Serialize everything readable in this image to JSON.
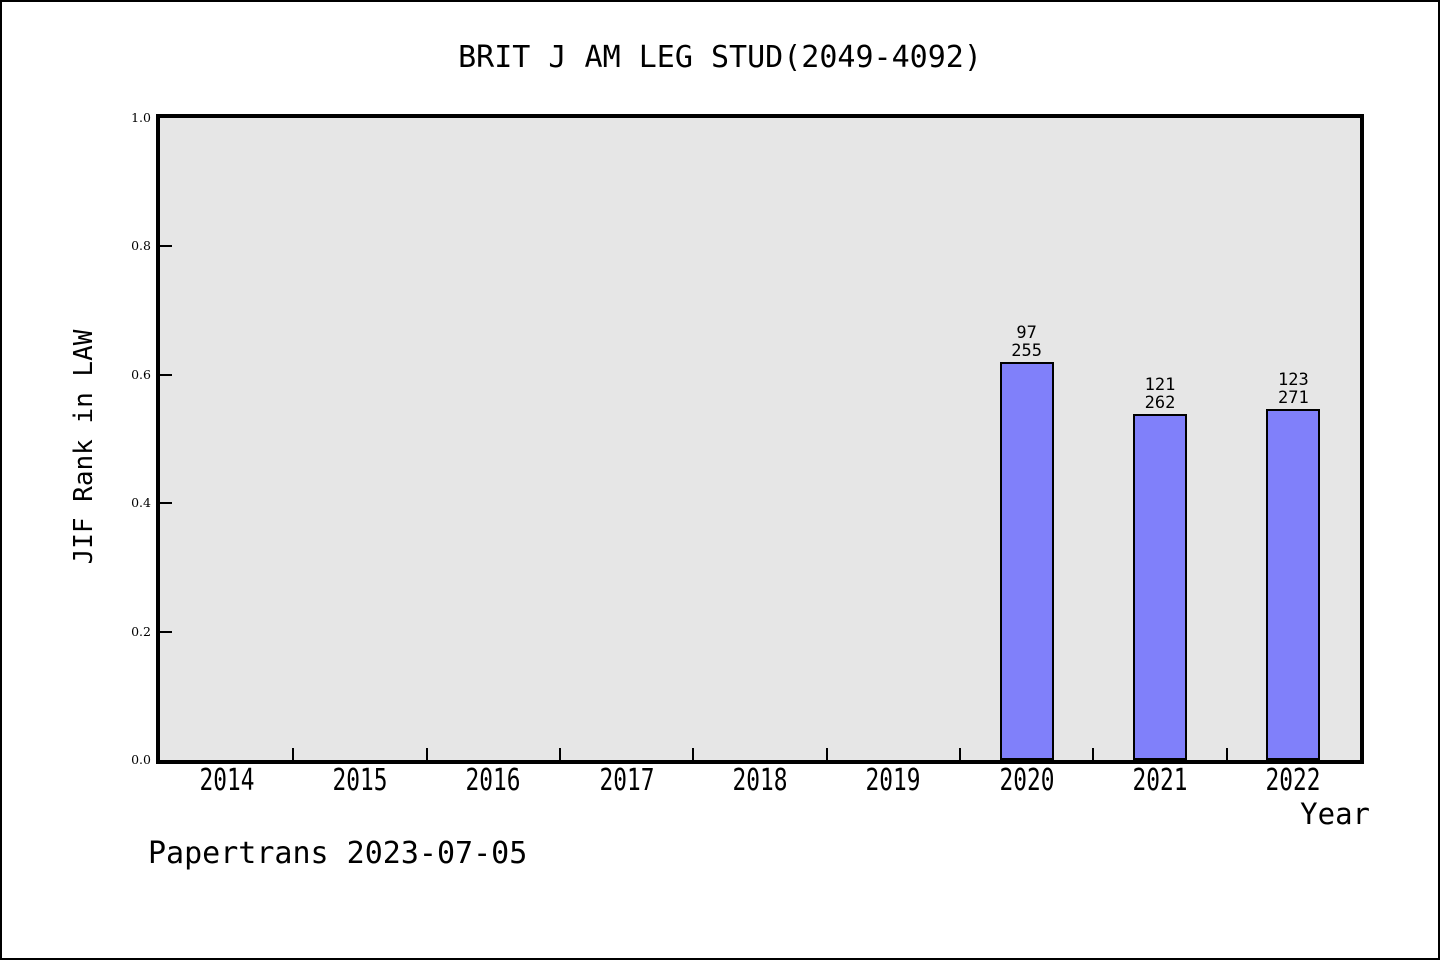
{
  "figure": {
    "background": "#ffffff",
    "border_color": "#000000",
    "footer": "Papertrans 2023-07-05"
  },
  "chart_data": {
    "type": "bar",
    "title": "BRIT J AM LEG STUD(2049-4092)",
    "xlabel": "Year",
    "ylabel": "JIF Rank in LAW",
    "categories": [
      "2014",
      "2015",
      "2016",
      "2017",
      "2018",
      "2019",
      "2020",
      "2021",
      "2022"
    ],
    "values": [
      null,
      null,
      null,
      null,
      null,
      null,
      0.6196,
      0.5382,
      0.5461
    ],
    "bars": [
      {
        "year": "2020",
        "rank": 97,
        "total": 255,
        "value": 0.6196,
        "label_lines": [
          "97",
          "255"
        ]
      },
      {
        "year": "2021",
        "rank": 121,
        "total": 262,
        "value": 0.5382,
        "label_lines": [
          "121",
          "262"
        ]
      },
      {
        "year": "2022",
        "rank": 123,
        "total": 271,
        "value": 0.5461,
        "label_lines": [
          "123",
          "271"
        ]
      }
    ],
    "ylim": [
      0.0,
      1.0
    ],
    "yticks": [
      "0.0",
      "0.2",
      "0.4",
      "0.6",
      "0.8",
      "1.0"
    ],
    "x_range": [
      2013.5,
      2022.5
    ],
    "grid": false,
    "legend": null,
    "plot_background": "#e6e6e6",
    "bar_fill": "#8080fa",
    "bar_edge": "#000000",
    "annotation": "Papertrans 2023-07-05"
  }
}
